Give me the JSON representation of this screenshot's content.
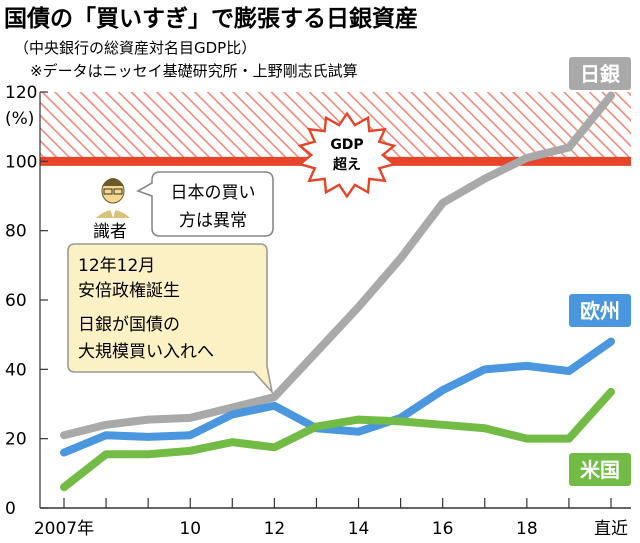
{
  "title": "国債の「買いすぎ」で膨張する日銀資産",
  "subtitle_1": "（中央銀行の総資産対名目GDP比）",
  "subtitle_2": "※データはニッセイ基礎研究所・上野剛志氏試算",
  "colors": {
    "boj": "#a9a9a9",
    "ecb": "#4a97df",
    "fed": "#72bb45",
    "gdp_line": "#e8442b",
    "hatch": "#ef8a7c",
    "callout_bg": "#fbf1c4",
    "callout_border": "#9a9a9a",
    "starburst": "#e8442b"
  },
  "chart_data": {
    "type": "line",
    "x": [
      2007,
      2008,
      2009,
      2010,
      2011,
      2012,
      2013,
      2014,
      2015,
      2016,
      2017,
      2018,
      2019,
      2020
    ],
    "x_tick_labels": [
      "2007年",
      "",
      "",
      "10",
      "",
      "12",
      "",
      "14",
      "",
      "16",
      "",
      "18",
      "",
      "直近"
    ],
    "y_ticks": [
      0,
      20,
      40,
      60,
      80,
      100,
      120
    ],
    "y_unit": "(%)",
    "ylim": [
      0,
      120
    ],
    "series": [
      {
        "name": "日銀",
        "color_key": "boj",
        "values": [
          21,
          24,
          25.5,
          26,
          29,
          32,
          45,
          58,
          72,
          88,
          95,
          101,
          104,
          119
        ]
      },
      {
        "name": "欧州",
        "color_key": "ecb",
        "values": [
          16,
          21,
          20.5,
          21,
          27,
          29.5,
          23,
          22,
          26,
          34,
          40,
          41,
          39.5,
          48
        ]
      },
      {
        "name": "米国",
        "color_key": "fed",
        "values": [
          6,
          15.5,
          15.5,
          16.5,
          19,
          17.5,
          23.5,
          25.5,
          25,
          24,
          23,
          20,
          20,
          33.5
        ]
      }
    ],
    "reference_line": {
      "value": 100
    },
    "gdp_label_1": "GDP",
    "gdp_label_2": "超え",
    "expert_tag": "識者",
    "bubble_line_1": "日本の買い",
    "bubble_line_2": "方は異常",
    "callout_line_1": "12年12月",
    "callout_line_2": "安倍政権誕生",
    "callout_line_3": "日銀が国債の",
    "callout_line_4": "大規模買い入れへ"
  }
}
